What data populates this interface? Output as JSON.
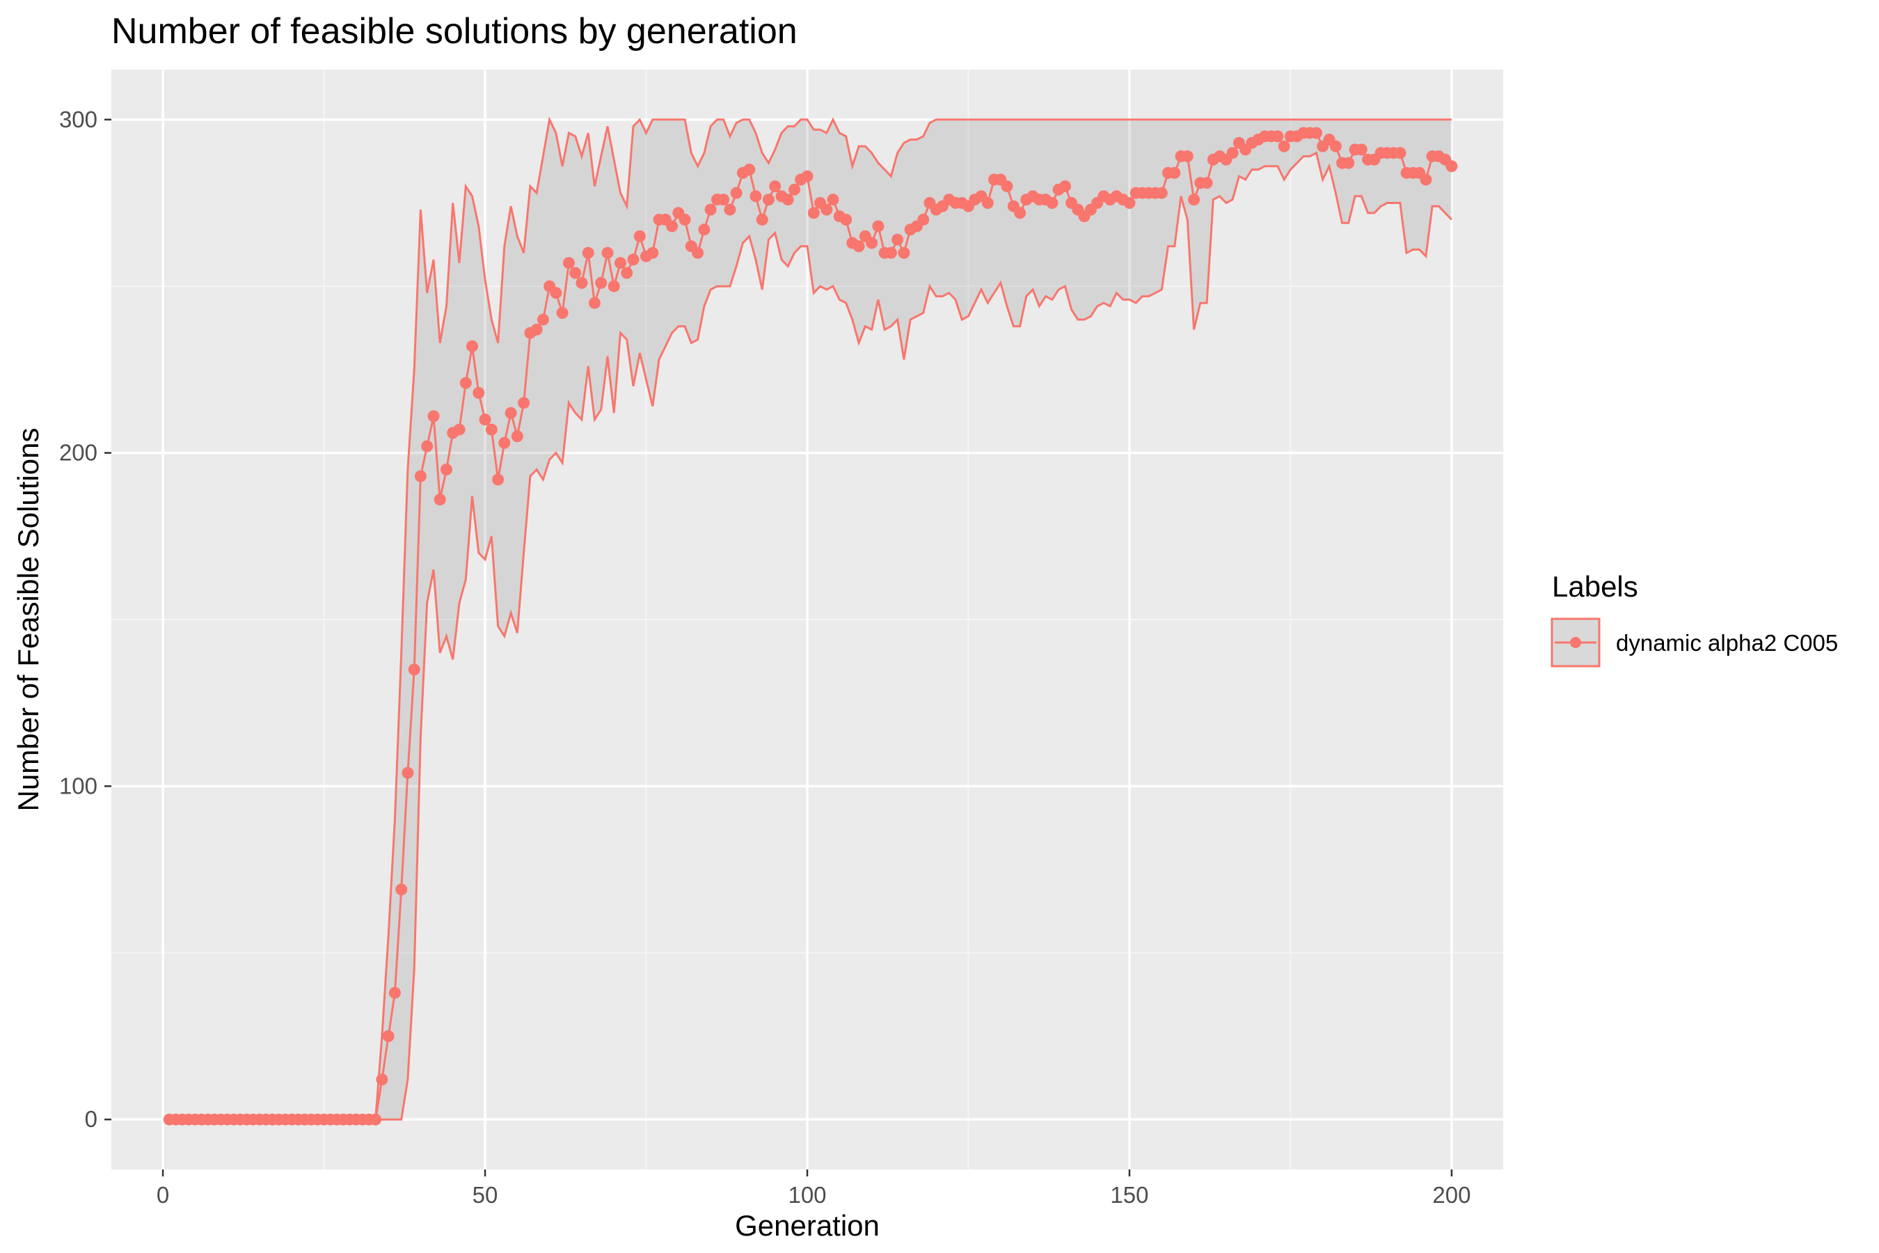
{
  "chart_data": {
    "type": "line",
    "title": "Number of feasible solutions by generation",
    "xlabel": "Generation",
    "ylabel": "Number of Feasible Solutions",
    "xlim": [
      -8,
      208
    ],
    "ylim": [
      -15,
      315
    ],
    "x_ticks": [
      0,
      50,
      100,
      150,
      200
    ],
    "y_ticks": [
      0,
      100,
      200,
      300
    ],
    "x_tick_labels": [
      "0",
      "50",
      "100",
      "150",
      "200"
    ],
    "y_tick_labels": [
      "0",
      "100",
      "200",
      "300"
    ],
    "grid": true,
    "legend_position": "right",
    "legend_title": "Labels",
    "series": [
      {
        "name": "dynamic alpha2 C005",
        "color": "#F8766D",
        "x": [
          1,
          2,
          3,
          4,
          5,
          6,
          7,
          8,
          9,
          10,
          11,
          12,
          13,
          14,
          15,
          16,
          17,
          18,
          19,
          20,
          21,
          22,
          23,
          24,
          25,
          26,
          27,
          28,
          29,
          30,
          31,
          32,
          33,
          34,
          35,
          36,
          37,
          38,
          39,
          40,
          41,
          42,
          43,
          44,
          45,
          46,
          47,
          48,
          49,
          50,
          51,
          52,
          53,
          54,
          55,
          56,
          57,
          58,
          59,
          60,
          61,
          62,
          63,
          64,
          65,
          66,
          67,
          68,
          69,
          70,
          71,
          72,
          73,
          74,
          75,
          76,
          77,
          78,
          79,
          80,
          81,
          82,
          83,
          84,
          85,
          86,
          87,
          88,
          89,
          90,
          91,
          92,
          93,
          94,
          95,
          96,
          97,
          98,
          99,
          100,
          101,
          102,
          103,
          104,
          105,
          106,
          107,
          108,
          109,
          110,
          111,
          112,
          113,
          114,
          115,
          116,
          117,
          118,
          119,
          120,
          121,
          122,
          123,
          124,
          125,
          126,
          127,
          128,
          129,
          130,
          131,
          132,
          133,
          134,
          135,
          136,
          137,
          138,
          139,
          140,
          141,
          142,
          143,
          144,
          145,
          146,
          147,
          148,
          149,
          150,
          151,
          152,
          153,
          154,
          155,
          156,
          157,
          158,
          159,
          160,
          161,
          162,
          163,
          164,
          165,
          166,
          167,
          168,
          169,
          170,
          171,
          172,
          173,
          174,
          175,
          176,
          177,
          178,
          179,
          180,
          181,
          182,
          183,
          184,
          185,
          186,
          187,
          188,
          189,
          190,
          191,
          192,
          193,
          194,
          195,
          196,
          197,
          198,
          199,
          200
        ],
        "mean": [
          0,
          0,
          0,
          0,
          0,
          0,
          0,
          0,
          0,
          0,
          0,
          0,
          0,
          0,
          0,
          0,
          0,
          0,
          0,
          0,
          0,
          0,
          0,
          0,
          0,
          0,
          0,
          0,
          0,
          0,
          0,
          0,
          0,
          12,
          25,
          38,
          69,
          104,
          135,
          193,
          202,
          211,
          186,
          195,
          206,
          207,
          221,
          232,
          218,
          210,
          207,
          192,
          203,
          212,
          205,
          215,
          236,
          237,
          240,
          250,
          248,
          242,
          257,
          254,
          251,
          260,
          245,
          251,
          260,
          250,
          257,
          254,
          258,
          265,
          259,
          260,
          270,
          270,
          268,
          272,
          270,
          262,
          260,
          267,
          273,
          276,
          276,
          273,
          278,
          284,
          285,
          277,
          270,
          276,
          280,
          277,
          276,
          279,
          282,
          283,
          272,
          275,
          273,
          276,
          271,
          270,
          263,
          262,
          265,
          263,
          268,
          260,
          260,
          264,
          260,
          267,
          268,
          270,
          275,
          273,
          274,
          276,
          275,
          275,
          274,
          276,
          277,
          275,
          282,
          282,
          280,
          274,
          272,
          276,
          277,
          276,
          276,
          275,
          279,
          280,
          275,
          273,
          271,
          273,
          275,
          277,
          276,
          277,
          276,
          275,
          278,
          278,
          278,
          278,
          278,
          284,
          284,
          289,
          289,
          276,
          281,
          281,
          288,
          289,
          288,
          290,
          293,
          291,
          293,
          294,
          295,
          295,
          295,
          292,
          295,
          295,
          296,
          296,
          296,
          292,
          294,
          292,
          287,
          287,
          291,
          291,
          288,
          288,
          290,
          290,
          290,
          290,
          284,
          284,
          284,
          282,
          289,
          289,
          288,
          286
        ],
        "upper": [
          0,
          0,
          0,
          0,
          0,
          0,
          0,
          0,
          0,
          0,
          0,
          0,
          0,
          0,
          0,
          0,
          0,
          0,
          0,
          0,
          0,
          0,
          0,
          0,
          0,
          0,
          0,
          0,
          0,
          0,
          0,
          0,
          0,
          25,
          55,
          90,
          140,
          195,
          225,
          273,
          248,
          258,
          233,
          244,
          275,
          257,
          280,
          277,
          268,
          252,
          240,
          233,
          262,
          274,
          265,
          260,
          280,
          278,
          289,
          300,
          296,
          286,
          296,
          295,
          289,
          296,
          280,
          289,
          298,
          288,
          278,
          274,
          298,
          300,
          296,
          300,
          300,
          300,
          300,
          300,
          300,
          290,
          286,
          290,
          298,
          300,
          300,
          295,
          299,
          300,
          300,
          296,
          290,
          287,
          291,
          296,
          298,
          298,
          300,
          300,
          297,
          297,
          296,
          300,
          296,
          295,
          286,
          292,
          292,
          290,
          287,
          285,
          283,
          290,
          293,
          294,
          294,
          295,
          299,
          300,
          300,
          300,
          300,
          300,
          300,
          300,
          300,
          300,
          300,
          300,
          300,
          300,
          300,
          300,
          300,
          300,
          300,
          300,
          300,
          300,
          300,
          300,
          300,
          300,
          300,
          300,
          300,
          300,
          300,
          300,
          300,
          300,
          300,
          300,
          300,
          300,
          300,
          300,
          300,
          300,
          300,
          300,
          300,
          300,
          300,
          300,
          300,
          300,
          300,
          300,
          300,
          300,
          300,
          300,
          300,
          300,
          300,
          300,
          300,
          300,
          300,
          300,
          300,
          300,
          300,
          300,
          300,
          300,
          300,
          300,
          300,
          300,
          300,
          300,
          300,
          300,
          300,
          300,
          300,
          300
        ],
        "lower": [
          0,
          0,
          0,
          0,
          0,
          0,
          0,
          0,
          0,
          0,
          0,
          0,
          0,
          0,
          0,
          0,
          0,
          0,
          0,
          0,
          0,
          0,
          0,
          0,
          0,
          0,
          0,
          0,
          0,
          0,
          0,
          0,
          0,
          0,
          0,
          0,
          0,
          12,
          45,
          115,
          155,
          165,
          140,
          145,
          138,
          155,
          162,
          187,
          170,
          168,
          175,
          148,
          145,
          152,
          146,
          170,
          193,
          195,
          192,
          198,
          200,
          197,
          215,
          212,
          210,
          226,
          210,
          213,
          229,
          212,
          236,
          234,
          220,
          230,
          222,
          214,
          228,
          232,
          236,
          238,
          238,
          233,
          234,
          244,
          249,
          250,
          250,
          250,
          256,
          263,
          265,
          258,
          249,
          264,
          266,
          258,
          256,
          260,
          262,
          262,
          248,
          250,
          249,
          250,
          246,
          245,
          240,
          233,
          238,
          237,
          246,
          237,
          238,
          240,
          228,
          240,
          241,
          242,
          250,
          247,
          247,
          248,
          246,
          240,
          241,
          245,
          249,
          245,
          248,
          251,
          244,
          238,
          238,
          247,
          249,
          244,
          247,
          246,
          249,
          250,
          243,
          240,
          240,
          241,
          244,
          245,
          244,
          248,
          246,
          246,
          245,
          247,
          247,
          248,
          249,
          262,
          262,
          277,
          270,
          237,
          245,
          245,
          276,
          277,
          275,
          276,
          283,
          282,
          285,
          285,
          286,
          286,
          286,
          282,
          285,
          287,
          289,
          289,
          290,
          282,
          286,
          278,
          269,
          269,
          277,
          277,
          272,
          272,
          274,
          275,
          275,
          275,
          260,
          261,
          261,
          259,
          274,
          274,
          272,
          270
        ]
      }
    ]
  }
}
